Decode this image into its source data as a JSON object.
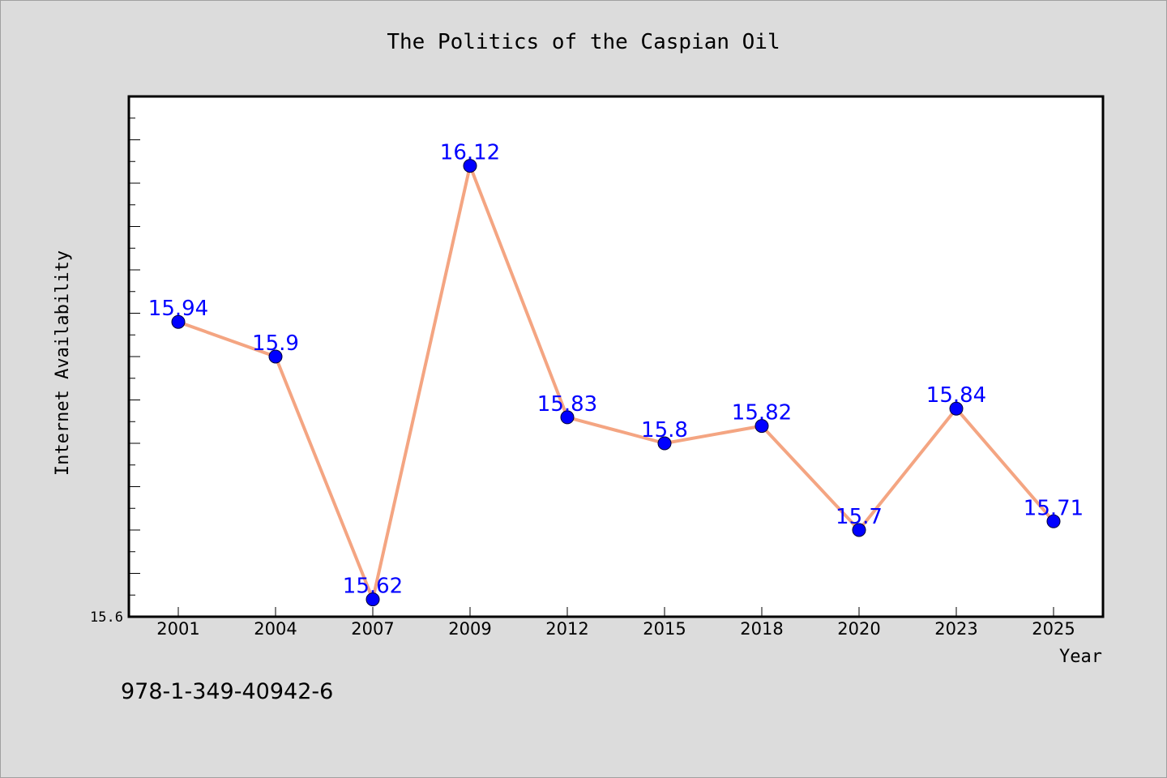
{
  "chart_data": {
    "type": "line",
    "title": "The Politics of the Caspian Oil",
    "xlabel": "Year",
    "ylabel": "Internet Availability",
    "categories": [
      "2001",
      "2004",
      "2007",
      "2009",
      "2012",
      "2015",
      "2018",
      "2020",
      "2023",
      "2025"
    ],
    "series": [
      {
        "values": [
          15.94,
          15.9,
          15.62,
          16.12,
          15.83,
          15.8,
          15.82,
          15.7,
          15.84,
          15.71
        ],
        "labels": [
          "15.94",
          "15.9",
          "15.62",
          "16.12",
          "15.83",
          "15.8",
          "15.82",
          "15.7",
          "15.84",
          "15.71"
        ],
        "line_color": "#f4a582",
        "marker_color": "#0000ff"
      }
    ],
    "ylim": [
      15.6,
      16.2
    ],
    "y_tick_labels": [
      "15.6"
    ],
    "grid": false,
    "legend": "none"
  },
  "footer": {
    "isbn": "978-1-349-40942-6"
  }
}
